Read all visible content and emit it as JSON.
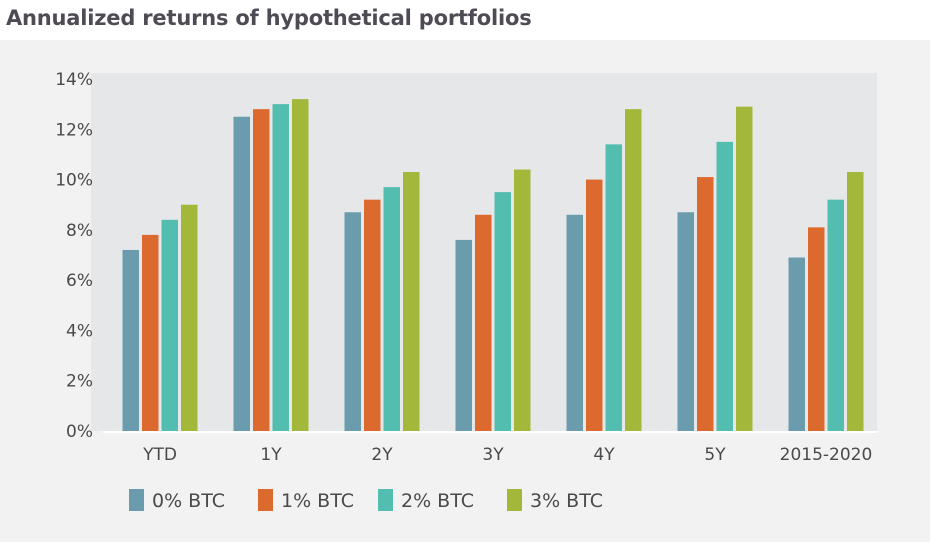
{
  "chart_data": {
    "type": "bar",
    "title": "Annualized returns of hypothetical portfolios",
    "xlabel": "",
    "ylabel": "",
    "ylim": [
      0,
      14
    ],
    "yticks": [
      "0%",
      "2%",
      "4%",
      "6%",
      "8%",
      "10%",
      "12%",
      "14%"
    ],
    "ytick_values": [
      0,
      2,
      4,
      6,
      8,
      10,
      12,
      14
    ],
    "categories": [
      "YTD",
      "1Y",
      "2Y",
      "3Y",
      "4Y",
      "5Y",
      "2015-2020"
    ],
    "grid": false,
    "legend_position": "bottom",
    "series": [
      {
        "name": "0% BTC",
        "color": "#6a9cad",
        "values": [
          7.2,
          12.5,
          8.7,
          7.6,
          8.6,
          8.7,
          6.9
        ]
      },
      {
        "name": "1% BTC",
        "color": "#dc692d",
        "values": [
          7.8,
          12.8,
          9.2,
          8.6,
          10.0,
          10.1,
          8.1
        ]
      },
      {
        "name": "2% BTC",
        "color": "#53bdb0",
        "values": [
          8.4,
          13.0,
          9.7,
          9.5,
          11.4,
          11.5,
          9.2
        ]
      },
      {
        "name": "3% BTC",
        "color": "#a3b73b",
        "values": [
          9.0,
          13.2,
          10.3,
          10.4,
          12.8,
          12.9,
          10.3
        ]
      }
    ]
  }
}
